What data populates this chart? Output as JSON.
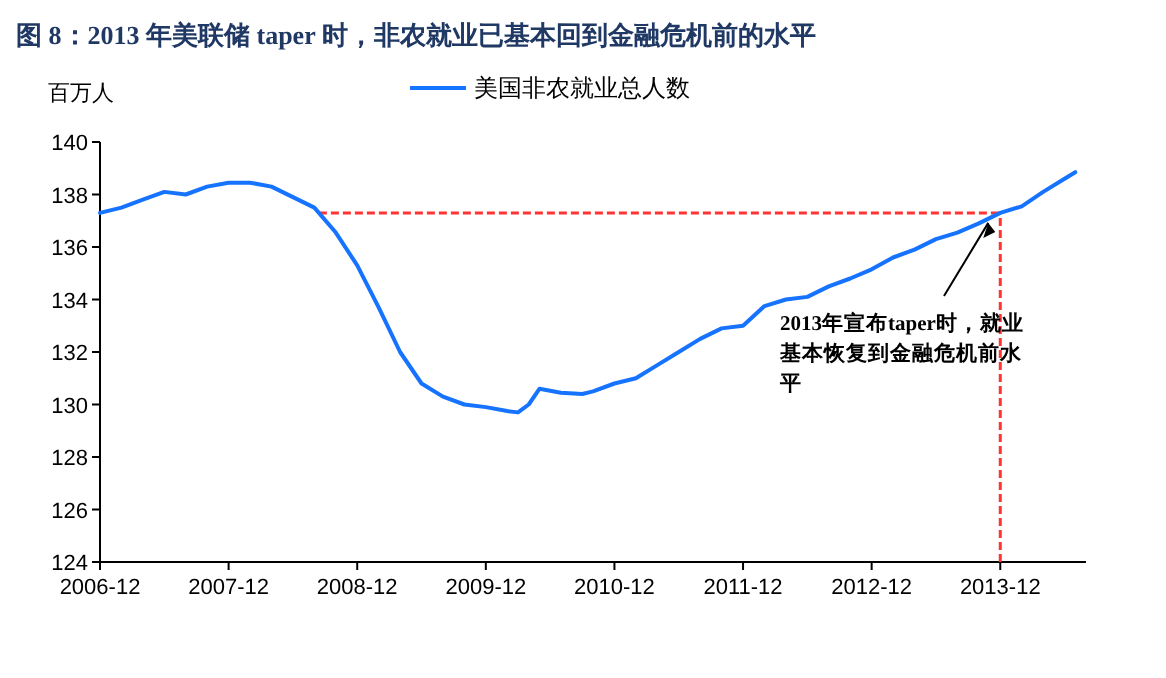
{
  "chart_data": {
    "type": "line",
    "title": "图 8：2013 年美联储 taper 时，非农就业已基本回到金融危机前的水平",
    "ylabel": "百万人",
    "x": [
      "2006-12",
      "2007-02",
      "2007-04",
      "2007-06",
      "2007-08",
      "2007-10",
      "2007-12",
      "2008-02",
      "2008-04",
      "2008-06",
      "2008-08",
      "2008-10",
      "2008-12",
      "2009-02",
      "2009-04",
      "2009-06",
      "2009-08",
      "2009-10",
      "2009-12",
      "2010-02",
      "2010-03",
      "2010-04",
      "2010-05",
      "2010-07",
      "2010-09",
      "2010-10",
      "2010-12",
      "2011-02",
      "2011-04",
      "2011-06",
      "2011-08",
      "2011-10",
      "2011-12",
      "2012-02",
      "2012-04",
      "2012-06",
      "2012-08",
      "2012-10",
      "2012-12",
      "2013-02",
      "2013-04",
      "2013-06",
      "2013-08",
      "2013-10",
      "2013-12",
      "2014-02",
      "2014-04",
      "2014-06",
      "2014-07"
    ],
    "series": [
      {
        "name": "美国非农就业总人数",
        "color": "#1673ff",
        "values": [
          137.3,
          137.5,
          137.8,
          138.1,
          138.0,
          138.3,
          138.45,
          138.45,
          138.3,
          137.9,
          137.5,
          136.55,
          135.3,
          133.7,
          132.0,
          130.8,
          130.3,
          130.0,
          129.9,
          129.75,
          129.7,
          130.0,
          130.6,
          130.45,
          130.4,
          130.5,
          130.8,
          131.0,
          131.5,
          132.0,
          132.5,
          132.9,
          133.0,
          133.75,
          134.0,
          134.1,
          134.5,
          134.8,
          135.15,
          135.6,
          135.9,
          136.3,
          136.55,
          136.9,
          137.3,
          137.55,
          138.1,
          138.6,
          138.85
        ]
      }
    ],
    "xlim": [
      "2006-12",
      "2014-08"
    ],
    "xticks": [
      {
        "value": "2006-12",
        "label": "2006-12"
      },
      {
        "value": "2007-12",
        "label": "2007-12"
      },
      {
        "value": "2008-12",
        "label": "2008-12"
      },
      {
        "value": "2009-12",
        "label": "2009-12"
      },
      {
        "value": "2010-12",
        "label": "2010-12"
      },
      {
        "value": "2011-12",
        "label": "2011-12"
      },
      {
        "value": "2012-12",
        "label": "2012-12"
      },
      {
        "value": "2013-12",
        "label": "2013-12"
      }
    ],
    "ylim": [
      124,
      140
    ],
    "yticks": [
      124,
      126,
      128,
      130,
      132,
      134,
      136,
      138,
      140
    ],
    "ref_lines": [
      {
        "axis": "y",
        "value": 137.3,
        "color": "#ff3333",
        "line_style": "dashed"
      },
      {
        "axis": "x",
        "value": "2013-12",
        "color": "#ff3333",
        "line_style": "dashed"
      }
    ],
    "annotations": [
      {
        "text": "2013年宣布taper时，就业基本恢复到金融危机前水平",
        "x": "2013-12",
        "y": 137.3
      }
    ],
    "legend": "top",
    "grid": false,
    "marker": "none",
    "line_style": "solid"
  }
}
